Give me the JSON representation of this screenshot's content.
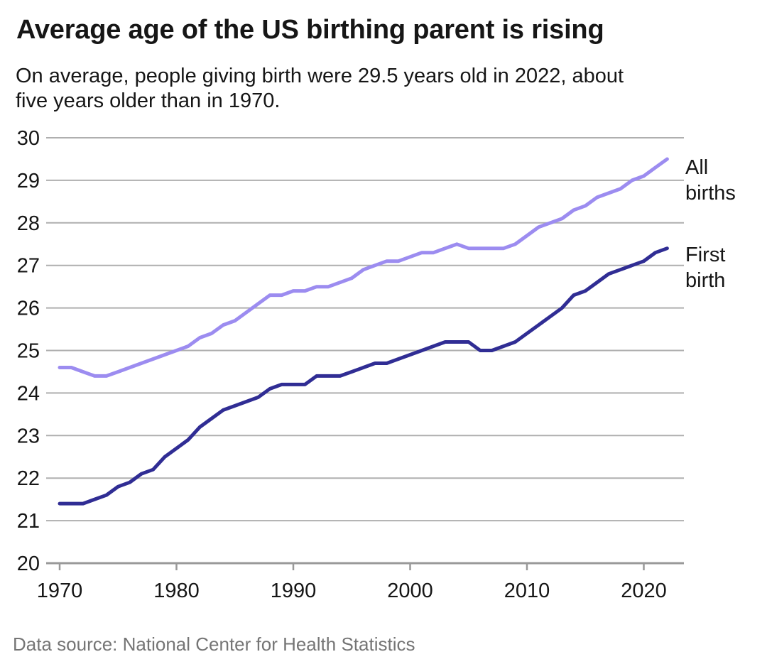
{
  "chart_data": {
    "type": "line",
    "title": "Average age of the US birthing parent is rising",
    "subtitle_lines": [
      "On average, people giving birth were 29.5 years old in 2022, about",
      "five years older than in 1970."
    ],
    "source_note": "Data source: National Center for Health Statistics",
    "xlabel": "",
    "ylabel": "",
    "xlim": [
      1970,
      2022
    ],
    "ylim": [
      20,
      30
    ],
    "xticks": [
      1970,
      1980,
      1990,
      2000,
      2010,
      2020
    ],
    "yticks": [
      20,
      21,
      22,
      23,
      24,
      25,
      26,
      27,
      28,
      29,
      30
    ],
    "grid": "horizontal",
    "legend_position": "inline-right",
    "x": [
      1970,
      1971,
      1972,
      1973,
      1974,
      1975,
      1976,
      1977,
      1978,
      1979,
      1980,
      1981,
      1982,
      1983,
      1984,
      1985,
      1986,
      1987,
      1988,
      1989,
      1990,
      1991,
      1992,
      1993,
      1994,
      1995,
      1996,
      1997,
      1998,
      1999,
      2000,
      2001,
      2002,
      2003,
      2004,
      2005,
      2006,
      2007,
      2008,
      2009,
      2010,
      2011,
      2012,
      2013,
      2014,
      2015,
      2016,
      2017,
      2018,
      2019,
      2020,
      2021,
      2022
    ],
    "series": [
      {
        "id": "all-births",
        "name": "All births",
        "color": "#9C8CF0",
        "values": [
          24.6,
          24.6,
          24.5,
          24.4,
          24.4,
          24.5,
          24.6,
          24.7,
          24.8,
          24.9,
          25.0,
          25.1,
          25.3,
          25.4,
          25.6,
          25.7,
          25.9,
          26.1,
          26.3,
          26.3,
          26.4,
          26.4,
          26.5,
          26.5,
          26.6,
          26.7,
          26.9,
          27.0,
          27.1,
          27.1,
          27.2,
          27.3,
          27.3,
          27.4,
          27.5,
          27.4,
          27.4,
          27.4,
          27.4,
          27.5,
          27.7,
          27.9,
          28.0,
          28.1,
          28.3,
          28.4,
          28.6,
          28.7,
          28.8,
          29.0,
          29.1,
          29.3,
          29.5
        ]
      },
      {
        "id": "first-birth",
        "name": "First birth",
        "color": "#302D94",
        "values": [
          21.4,
          21.4,
          21.4,
          21.5,
          21.6,
          21.8,
          21.9,
          22.1,
          22.2,
          22.5,
          22.7,
          22.9,
          23.2,
          23.4,
          23.6,
          23.7,
          23.8,
          23.9,
          24.1,
          24.2,
          24.2,
          24.2,
          24.4,
          24.4,
          24.4,
          24.5,
          24.6,
          24.7,
          24.7,
          24.8,
          24.9,
          25.0,
          25.1,
          25.2,
          25.2,
          25.2,
          25.0,
          25.0,
          25.1,
          25.2,
          25.4,
          25.6,
          25.8,
          26.0,
          26.3,
          26.4,
          26.6,
          26.8,
          26.9,
          27.0,
          27.1,
          27.3,
          27.4
        ]
      }
    ]
  },
  "colors": {
    "background": "#FFFFFF",
    "gridline": "#AFAFAF",
    "axis": "#999999",
    "text": "#161616",
    "source_text": "#757575"
  }
}
